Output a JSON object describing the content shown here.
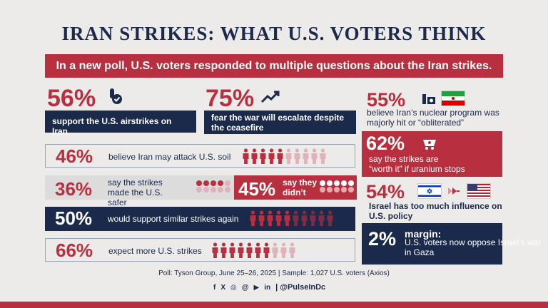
{
  "title": "IRAN STRIKES: WHAT U.S. VOTERS THINK",
  "banner": "In a new poll, U.S. voters responded to multiple questions about the Iran strikes.",
  "cards": {
    "airstrikes": {
      "value": "56%",
      "text": "support the U.S. airstrikes on Iran"
    },
    "escalate": {
      "value": "75%",
      "text": "fear the war will escalate despite the ceasefire"
    },
    "nuclear": {
      "value": "55%",
      "text": "believe Iran’s nuclear program was majorly hit or “obliterated”"
    },
    "worth": {
      "value": "62%",
      "text_line1": "say the strikes are",
      "text_line2": "“worth it” if uranium stops"
    },
    "israel": {
      "value": "54%",
      "text": "Israel has too much influence on U.S. policy"
    },
    "margin": {
      "value": "2%",
      "label": "margin:",
      "text": "U.S. voters now oppose Israel’s war in Gaza"
    }
  },
  "rows": {
    "attack": {
      "value": "46%",
      "text": "believe Iran may attack U.S. soil",
      "filled": 5,
      "total": 10
    },
    "safer": {
      "value": "36%",
      "text": "say the strikes made the U.S. safer",
      "dots_filled": 4,
      "dots_total": 10
    },
    "didnt": {
      "value": "45%",
      "text": "say they didn’t",
      "dots_filled": 5,
      "dots_total": 10
    },
    "similar": {
      "value": "50%",
      "text": "would support similar strikes again",
      "filled": 5,
      "total": 10
    },
    "more": {
      "value": "66%",
      "text": "expect more U.S. strikes",
      "filled": 7,
      "total": 10
    }
  },
  "footer": {
    "poll": "Poll: Tyson Group, June 25–26, 2025 | Sample: 1,027 U.S. voters (Axios)",
    "social": [
      "f",
      "X",
      "◎",
      "@",
      "▶",
      "in"
    ],
    "handle": "| @PulseInDc"
  },
  "colors": {
    "red": "#b8303f",
    "navy": "#1b2a4a",
    "pink": "#d79aa3",
    "maroon": "#7a2d45"
  }
}
